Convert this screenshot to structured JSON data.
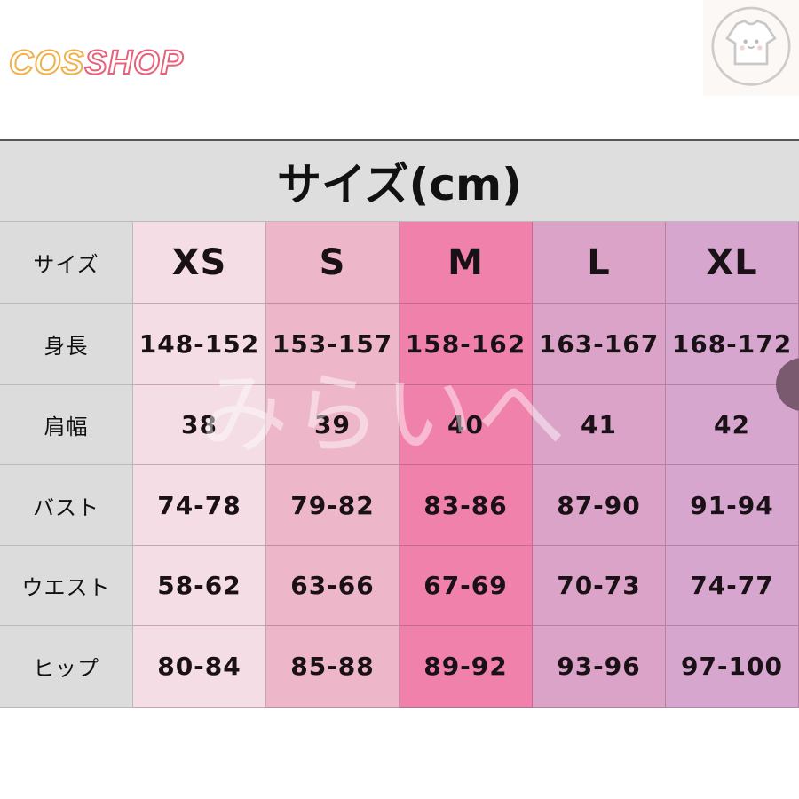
{
  "logo": {
    "part1": "COS",
    "part2": "SHOP"
  },
  "badge": {
    "icon": "tshirt-face-icon"
  },
  "table": {
    "title": "サイズ(cm)",
    "corner": "サイズ",
    "sizes": [
      "XS",
      "S",
      "M",
      "L",
      "XL"
    ],
    "rows": [
      {
        "label": "身長",
        "values": [
          "148-152",
          "153-157",
          "158-162",
          "163-167",
          "168-172"
        ]
      },
      {
        "label": "肩幅",
        "values": [
          "38",
          "39",
          "40",
          "41",
          "42"
        ]
      },
      {
        "label": "バスト",
        "values": [
          "74-78",
          "79-82",
          "83-86",
          "87-90",
          "91-94"
        ]
      },
      {
        "label": "ウエスト",
        "values": [
          "58-62",
          "63-66",
          "67-69",
          "70-73",
          "74-77"
        ]
      },
      {
        "label": "ヒップ",
        "values": [
          "80-84",
          "85-88",
          "89-92",
          "93-96",
          "97-100"
        ]
      }
    ],
    "column_colors": [
      "#f5dde5",
      "#eeb6c9",
      "#f081ab",
      "#dca3c8",
      "#d7a6cf"
    ]
  },
  "watermark": "みらいへ"
}
